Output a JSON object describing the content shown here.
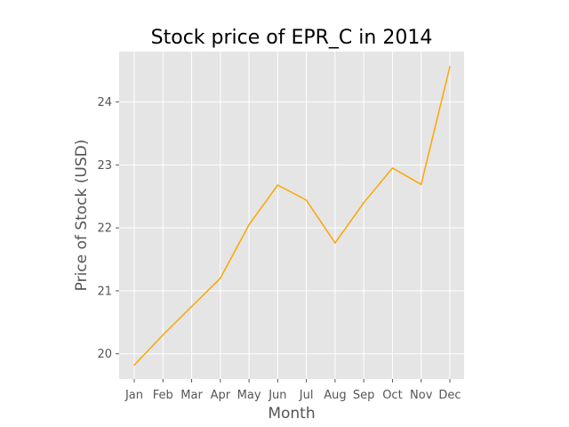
{
  "chart_data": {
    "type": "line",
    "title": "Stock price of EPR_C in 2014",
    "xlabel": "Month",
    "ylabel": "Price of Stock (USD)",
    "categories": [
      "Jan",
      "Feb",
      "Mar",
      "Apr",
      "May",
      "Jun",
      "Jul",
      "Aug",
      "Sep",
      "Oct",
      "Nov",
      "Dec"
    ],
    "series": [
      {
        "values": [
          19.82,
          20.3,
          20.75,
          21.2,
          22.05,
          22.68,
          22.44,
          21.76,
          22.4,
          22.95,
          22.69,
          24.56
        ]
      }
    ],
    "yticks": [
      20,
      21,
      22,
      23,
      24
    ],
    "ylim": [
      19.6,
      24.8
    ],
    "grid": true,
    "colors": {
      "line": "#ffa500",
      "plot_background": "#e5e5e5",
      "grid": "#ffffff"
    }
  }
}
